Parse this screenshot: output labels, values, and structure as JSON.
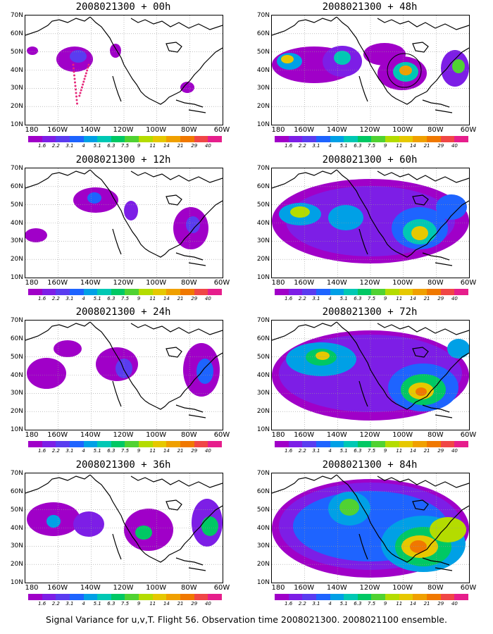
{
  "figure": {
    "caption": "Signal Variance for u,v,T. Flight 56. Observation time 2008021300. 2008021100 ensemble.",
    "lat_labels": [
      "70N",
      "60N",
      "50N",
      "40N",
      "30N",
      "20N",
      "10N"
    ],
    "lon_labels": [
      "180",
      "160W",
      "140W",
      "120W",
      "100W",
      "80W",
      "60W"
    ],
    "colorbar": {
      "colors": [
        "#a000c8",
        "#7d1ee6",
        "#5a3cf0",
        "#1e64ff",
        "#00a0e6",
        "#00c8b4",
        "#00c864",
        "#50d232",
        "#b4dc00",
        "#e6c800",
        "#f0a000",
        "#f07800",
        "#f04646",
        "#e61e8c"
      ],
      "labels": [
        "1.6",
        "2.2",
        "3.1",
        "4",
        "5.1",
        "6.3",
        "7.5",
        "9",
        "11",
        "14",
        "21",
        "29",
        "40"
      ]
    },
    "panels": [
      {
        "title": "2008021300 + 00h"
      },
      {
        "title": "2008021300 + 48h"
      },
      {
        "title": "2008021300 + 12h"
      },
      {
        "title": "2008021300 + 60h"
      },
      {
        "title": "2008021300 + 24h"
      },
      {
        "title": "2008021300 + 72h"
      },
      {
        "title": "2008021300 + 36h"
      },
      {
        "title": "2008021300 + 84h"
      }
    ]
  }
}
